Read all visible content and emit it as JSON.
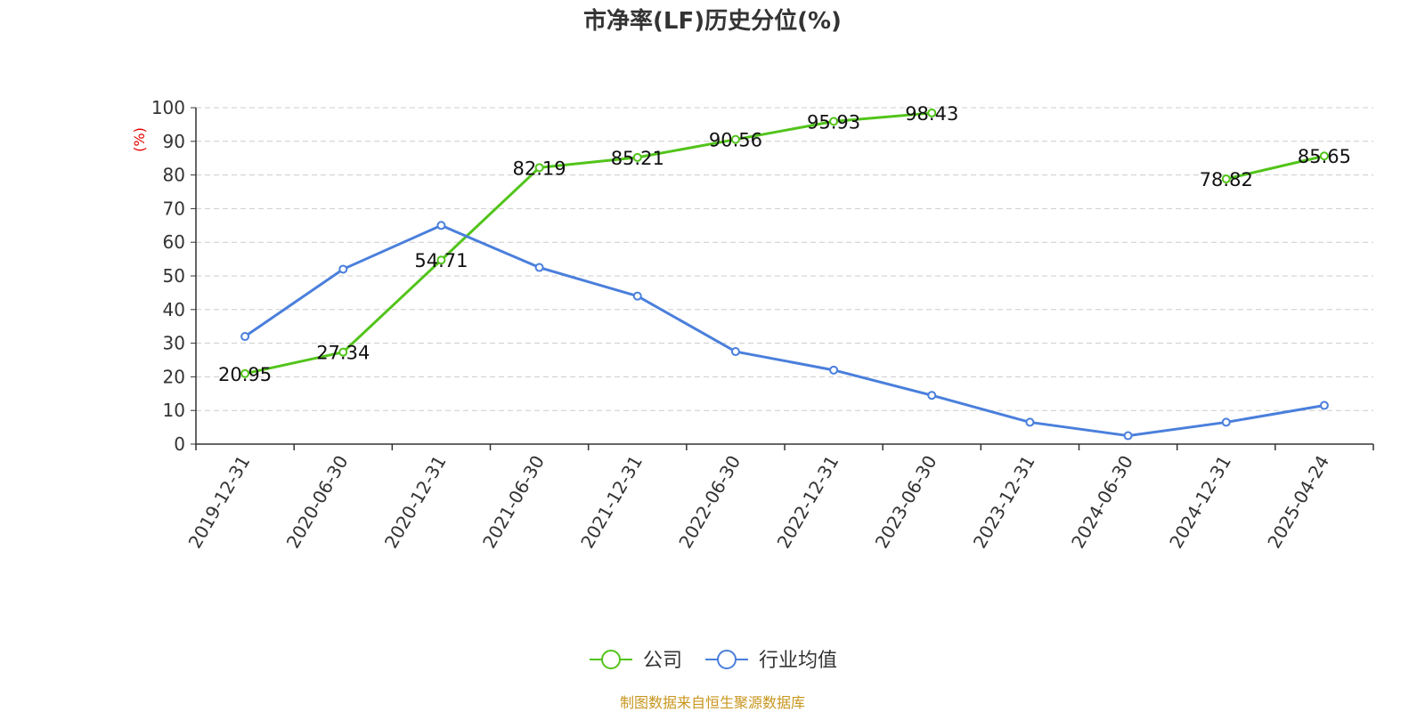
{
  "chart_data": {
    "type": "line",
    "title": "市净率(LF)历史分位(%)",
    "ylabel": "(%)",
    "ylim": [
      0,
      100
    ],
    "yticks": [
      0,
      10,
      20,
      30,
      40,
      50,
      60,
      70,
      80,
      90,
      100
    ],
    "categories": [
      "2019-12-31",
      "2020-06-30",
      "2020-12-31",
      "2021-06-30",
      "2021-12-31",
      "2022-06-30",
      "2022-12-31",
      "2023-06-30",
      "2023-12-31",
      "2024-06-30",
      "2024-12-31",
      "2025-04-24"
    ],
    "series": [
      {
        "name": "公司",
        "color": "#52c41a",
        "values": [
          20.95,
          27.34,
          54.71,
          82.19,
          85.21,
          90.56,
          95.93,
          98.43,
          null,
          null,
          78.82,
          85.65
        ],
        "data_labels": [
          "20.95",
          "27.34",
          "54.71",
          "82.19",
          "85.21",
          "90.56",
          "95.93",
          "98.43",
          "",
          "",
          "78.82",
          "85.65"
        ]
      },
      {
        "name": "行业均值",
        "color": "#4a7fdc",
        "values": [
          32.0,
          52.0,
          65.0,
          52.5,
          44.0,
          27.5,
          22.0,
          14.5,
          6.5,
          2.5,
          6.5,
          11.5
        ]
      }
    ],
    "grid": true,
    "legend_position": "bottom-center"
  },
  "source_note": "制图数据来自恒生聚源数据库",
  "colors": {
    "ylabel": "#e60000",
    "source": "#c8961e",
    "grid": "#cccccc",
    "axis": "#333333"
  }
}
